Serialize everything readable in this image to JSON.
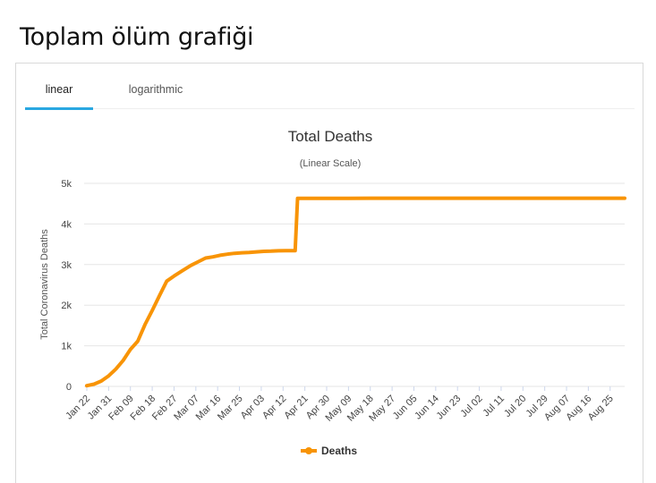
{
  "page": {
    "heading": "Toplam ölüm grafiği"
  },
  "tabs": [
    {
      "label": "linear",
      "active": true
    },
    {
      "label": "logarithmic",
      "active": false
    }
  ],
  "colors": {
    "series": "#f89406",
    "active_tab": "#29a7e1",
    "grid": "#e6e6e6"
  },
  "chart_data": {
    "type": "line",
    "title": "Total Deaths",
    "subtitle": "(Linear Scale)",
    "xlabel": "",
    "ylabel": "Total Coronavirus Deaths",
    "ylim": [
      0,
      5000
    ],
    "yticks": [
      0,
      1000,
      2000,
      3000,
      4000,
      5000
    ],
    "ytick_labels": [
      "0",
      "1k",
      "2k",
      "3k",
      "4k",
      "5k"
    ],
    "xlim": [
      "Jan 22",
      "Aug 31"
    ],
    "xtick_labels": [
      "Jan 22",
      "Jan 31",
      "Feb 09",
      "Feb 18",
      "Feb 27",
      "Mar 07",
      "Mar 16",
      "Mar 25",
      "Apr 03",
      "Apr 12",
      "Apr 21",
      "Apr 30",
      "May 09",
      "May 18",
      "May 27",
      "Jun 05",
      "Jun 14",
      "Jun 23",
      "Jul 02",
      "Jul 11",
      "Jul 20",
      "Jul 29",
      "Aug 07",
      "Aug 16",
      "Aug 25"
    ],
    "grid": true,
    "legend_position": "bottom-center",
    "series": [
      {
        "name": "Deaths",
        "color": "#f89406",
        "x": [
          "Jan 22",
          "Jan 25",
          "Jan 28",
          "Jan 31",
          "Feb 03",
          "Feb 06",
          "Feb 09",
          "Feb 12",
          "Feb 15",
          "Feb 18",
          "Feb 21",
          "Feb 24",
          "Feb 27",
          "Mar 02",
          "Mar 05",
          "Mar 08",
          "Mar 11",
          "Mar 14",
          "Mar 17",
          "Mar 20",
          "Mar 23",
          "Mar 26",
          "Mar 29",
          "Apr 01",
          "Apr 04",
          "Apr 07",
          "Apr 10",
          "Apr 13",
          "Apr 16",
          "Apr 17",
          "Apr 18",
          "Apr 21",
          "Apr 30",
          "May 09",
          "May 18",
          "May 27",
          "Jun 05",
          "Jun 14",
          "Jun 23",
          "Jul 02",
          "Jul 11",
          "Jul 20",
          "Jul 29",
          "Aug 07",
          "Aug 16",
          "Aug 25",
          "Aug 31"
        ],
        "y": [
          17,
          56,
          132,
          259,
          427,
          638,
          910,
          1113,
          1523,
          1870,
          2236,
          2592,
          2717,
          2870,
          2981,
          3070,
          3160,
          3190,
          3230,
          3255,
          3277,
          3290,
          3300,
          3312,
          3326,
          3331,
          3339,
          3341,
          3342,
          3342,
          4632,
          4632,
          4633,
          4633,
          4634,
          4634,
          4634,
          4634,
          4634,
          4634,
          4634,
          4634,
          4634,
          4634,
          4634,
          4634,
          4634
        ]
      }
    ]
  }
}
